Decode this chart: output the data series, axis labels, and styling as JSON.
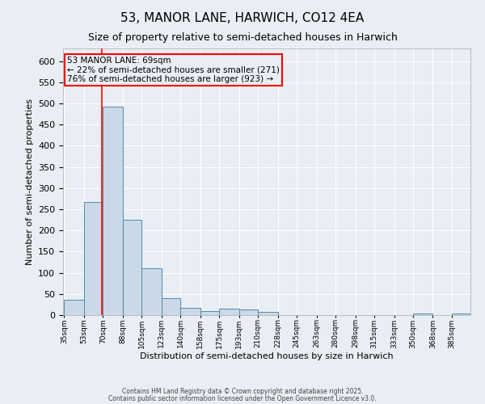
{
  "title": "53, MANOR LANE, HARWICH, CO12 4EA",
  "subtitle": "Size of property relative to semi-detached houses in Harwich",
  "xlabel": "Distribution of semi-detached houses by size in Harwich",
  "ylabel": "Number of semi-detached properties",
  "bins": [
    "35sqm",
    "53sqm",
    "70sqm",
    "88sqm",
    "105sqm",
    "123sqm",
    "140sqm",
    "158sqm",
    "175sqm",
    "193sqm",
    "210sqm",
    "228sqm",
    "245sqm",
    "263sqm",
    "280sqm",
    "298sqm",
    "315sqm",
    "333sqm",
    "350sqm",
    "368sqm",
    "385sqm"
  ],
  "bin_edges": [
    35,
    53,
    70,
    88,
    105,
    123,
    140,
    158,
    175,
    193,
    210,
    228,
    245,
    263,
    280,
    298,
    315,
    333,
    350,
    368,
    385
  ],
  "counts": [
    37,
    267,
    493,
    225,
    110,
    40,
    17,
    10,
    15,
    14,
    7,
    0,
    0,
    0,
    0,
    0,
    0,
    0,
    4,
    0,
    4
  ],
  "bar_color": "#c9d9e8",
  "bar_edge_color": "#5588aa",
  "red_line_x": 69,
  "annotation_text": "53 MANOR LANE: 69sqm\n← 22% of semi-detached houses are smaller (271)\n76% of semi-detached houses are larger (923) →",
  "ylim": [
    0,
    630
  ],
  "yticks": [
    0,
    50,
    100,
    150,
    200,
    250,
    300,
    350,
    400,
    450,
    500,
    550,
    600
  ],
  "background_color": "#e8eef4",
  "grid_color": "#ffffff",
  "footer_line1": "Contains HM Land Registry data © Crown copyright and database right 2025.",
  "footer_line2": "Contains public sector information licensed under the Open Government Licence v3.0."
}
